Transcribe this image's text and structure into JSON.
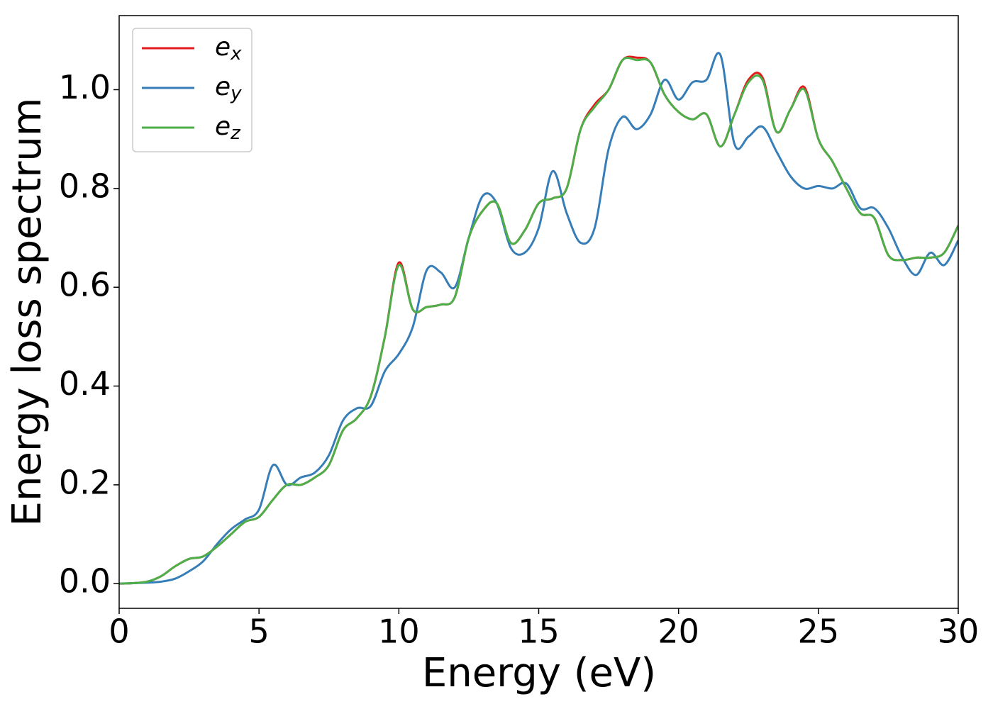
{
  "chart_data": {
    "type": "line",
    "xlabel": "Energy (eV)",
    "ylabel": "Energy loss spectrum",
    "x": [
      0,
      0.5,
      1,
      1.5,
      2,
      2.5,
      3,
      3.5,
      4,
      4.5,
      5,
      5.5,
      6,
      6.5,
      7,
      7.5,
      8,
      8.5,
      9,
      9.5,
      10,
      10.5,
      11,
      11.5,
      12,
      12.5,
      13,
      13.5,
      14,
      14.5,
      15,
      15.5,
      16,
      16.5,
      17,
      17.5,
      18,
      18.5,
      19,
      19.5,
      20,
      20.5,
      21,
      21.5,
      22,
      22.5,
      23,
      23.5,
      24,
      24.5,
      25,
      25.5,
      26,
      26.5,
      27,
      27.5,
      28,
      28.5,
      29,
      29.5,
      30
    ],
    "series": [
      {
        "name": "ex",
        "color": "#e41a1c",
        "values": [
          0,
          0.001,
          0.004,
          0.015,
          0.035,
          0.05,
          0.055,
          0.075,
          0.1,
          0.125,
          0.135,
          0.17,
          0.2,
          0.2,
          0.215,
          0.24,
          0.31,
          0.335,
          0.38,
          0.5,
          0.65,
          0.555,
          0.56,
          0.565,
          0.58,
          0.7,
          0.755,
          0.77,
          0.69,
          0.715,
          0.77,
          0.78,
          0.8,
          0.92,
          0.97,
          1.0,
          1.06,
          1.065,
          1.055,
          0.99,
          0.955,
          0.94,
          0.95,
          0.885,
          0.95,
          1.02,
          1.025,
          0.915,
          0.96,
          1.005,
          0.9,
          0.855,
          0.8,
          0.75,
          0.74,
          0.665,
          0.655,
          0.66,
          0.66,
          0.67,
          0.725
        ]
      },
      {
        "name": "ey",
        "color": "#377eb8",
        "values": [
          0,
          0.001,
          0.002,
          0.004,
          0.01,
          0.025,
          0.045,
          0.08,
          0.11,
          0.13,
          0.15,
          0.24,
          0.2,
          0.215,
          0.225,
          0.26,
          0.33,
          0.355,
          0.36,
          0.43,
          0.465,
          0.52,
          0.635,
          0.63,
          0.6,
          0.7,
          0.785,
          0.77,
          0.68,
          0.67,
          0.72,
          0.835,
          0.75,
          0.69,
          0.72,
          0.88,
          0.945,
          0.92,
          0.95,
          1.02,
          0.98,
          1.015,
          1.02,
          1.07,
          0.89,
          0.905,
          0.925,
          0.875,
          0.825,
          0.8,
          0.805,
          0.8,
          0.81,
          0.76,
          0.76,
          0.72,
          0.66,
          0.625,
          0.67,
          0.645,
          0.695
        ]
      },
      {
        "name": "ez",
        "color": "#4daf4a",
        "values": [
          0,
          0.001,
          0.004,
          0.015,
          0.035,
          0.05,
          0.055,
          0.075,
          0.1,
          0.125,
          0.135,
          0.17,
          0.2,
          0.2,
          0.215,
          0.24,
          0.31,
          0.335,
          0.38,
          0.5,
          0.645,
          0.555,
          0.56,
          0.565,
          0.58,
          0.7,
          0.755,
          0.77,
          0.69,
          0.715,
          0.77,
          0.78,
          0.8,
          0.92,
          0.965,
          1.0,
          1.06,
          1.06,
          1.055,
          0.99,
          0.955,
          0.94,
          0.95,
          0.885,
          0.95,
          1.015,
          1.02,
          0.915,
          0.96,
          1.0,
          0.9,
          0.855,
          0.8,
          0.75,
          0.74,
          0.665,
          0.655,
          0.66,
          0.66,
          0.67,
          0.725
        ]
      }
    ],
    "xlim": [
      0,
      30
    ],
    "xticks": [
      0,
      5,
      10,
      15,
      20,
      25,
      30
    ],
    "ylim": [
      -0.05,
      1.15
    ],
    "yticks": [
      {
        "value": 0,
        "label": "0.0"
      },
      0.2,
      0.4,
      0.6,
      0.8,
      {
        "value": 1,
        "label": "1.0"
      }
    ],
    "grid": false,
    "legend": "upper left"
  }
}
